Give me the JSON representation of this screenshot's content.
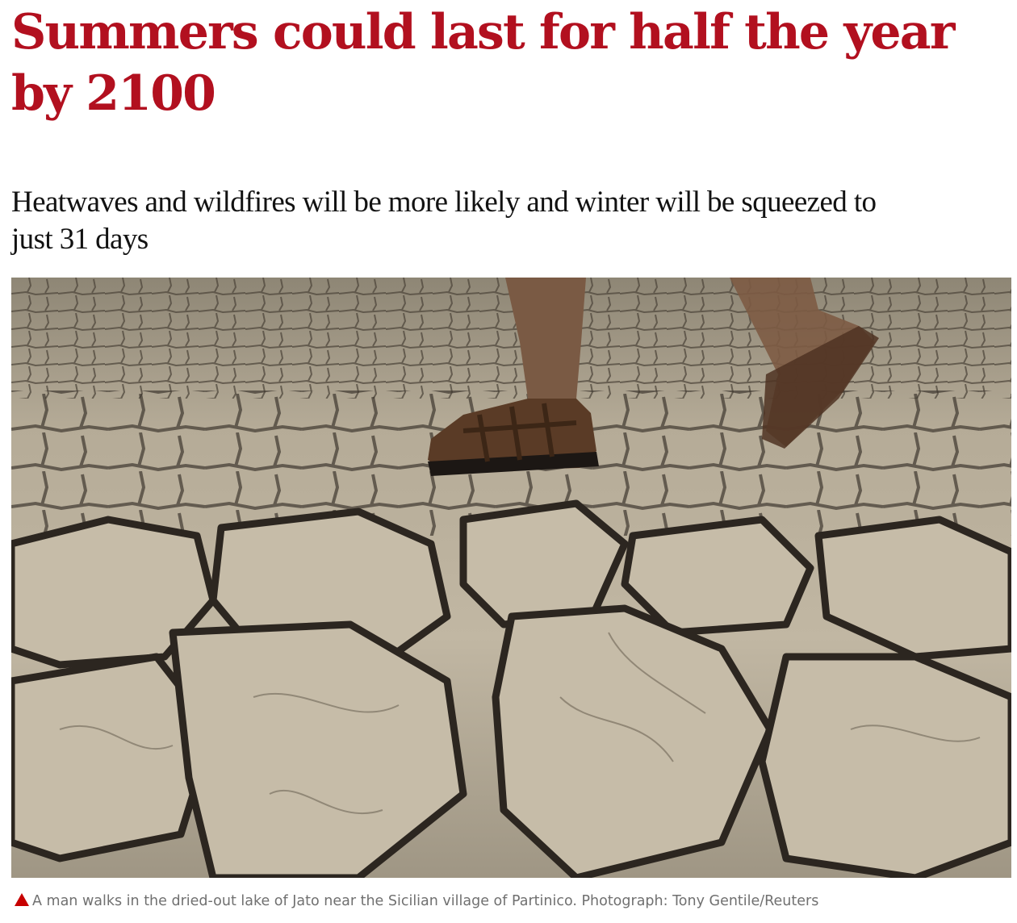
{
  "article": {
    "headline": "Summers could last for half the year by 2100",
    "standfirst": "Heatwaves and wildfires will be more likely and winter will be squeezed to just 31 days",
    "caption": "A man walks in the dried-out lake of Jato near the Sicilian village of Partinico. Photograph: Tony Gentile/Reuters"
  },
  "colors": {
    "headline": "#b2101f",
    "caption_marker": "#c70000",
    "caption_text": "#707070"
  },
  "icons": {
    "caption_marker": "triangle-up-icon"
  }
}
